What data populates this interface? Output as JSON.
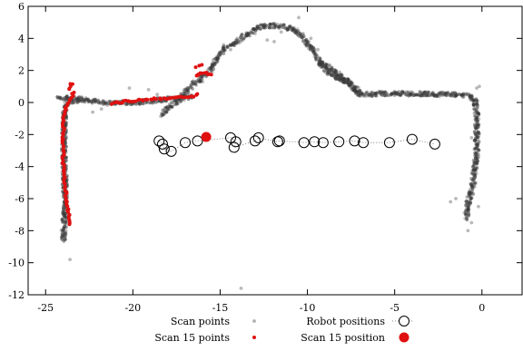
{
  "chart_data": {
    "type": "scatter",
    "title": "",
    "xlabel": "",
    "ylabel": "",
    "xlim": [
      -26,
      2.3
    ],
    "ylim": [
      -12,
      6
    ],
    "x_ticks": [
      -25,
      -20,
      -15,
      -10,
      -5,
      0
    ],
    "y_ticks": [
      -12,
      -10,
      -8,
      -6,
      -4,
      -2,
      0,
      2,
      4,
      6
    ],
    "x_tick_labels": [
      "-25",
      "-20",
      "-15",
      "-10",
      "-5",
      "0"
    ],
    "y_tick_labels": [
      "-12",
      "-10",
      "-8",
      "-6",
      "-4",
      "-2",
      "0",
      "2",
      "4",
      "6"
    ],
    "grid": false,
    "legend": {
      "placement": "bottom-center",
      "entries": [
        {
          "key": "scan_points",
          "label": "Scan points"
        },
        {
          "key": "robot_positions",
          "label": "Robot positions"
        },
        {
          "key": "scan15_points",
          "label": "Scan 15 points"
        },
        {
          "key": "scan15_position",
          "label": "Scan 15 position"
        }
      ]
    },
    "colors": {
      "scan_points": "#3a3a3a",
      "scan15": "#e01010",
      "robot_marker": "#000000"
    },
    "series": [
      {
        "key": "scan_points",
        "name": "Scan points",
        "style": "gray-dots",
        "polylines": [
          [
            [
              -24.0,
              -8.6
            ],
            [
              -23.9,
              -7.0
            ],
            [
              -23.9,
              -5.0
            ],
            [
              -23.95,
              -3.0
            ],
            [
              -23.95,
              -1.5
            ],
            [
              -23.9,
              -0.5
            ],
            [
              -23.8,
              0.0
            ],
            [
              -23.5,
              0.1
            ],
            [
              -23.0,
              0.1
            ]
          ],
          [
            [
              -24.2,
              0.3
            ],
            [
              -23.0,
              0.2
            ],
            [
              -22.0,
              0.05
            ],
            [
              -21.5,
              -0.05
            ],
            [
              -21.0,
              -0.05
            ],
            [
              -20.0,
              0.0
            ],
            [
              -19.0,
              0.1
            ],
            [
              -18.0,
              0.2
            ],
            [
              -17.0,
              0.3
            ],
            [
              -16.6,
              0.35
            ]
          ],
          [
            [
              -18.3,
              -0.8
            ],
            [
              -18.0,
              -0.3
            ],
            [
              -17.5,
              0.0
            ],
            [
              -17.0,
              0.6
            ],
            [
              -16.5,
              1.2
            ],
            [
              -16.0,
              1.6
            ],
            [
              -15.5,
              2.1
            ],
            [
              -15.2,
              2.8
            ],
            [
              -14.8,
              3.3
            ],
            [
              -14.2,
              3.7
            ],
            [
              -13.5,
              4.2
            ],
            [
              -12.8,
              4.7
            ],
            [
              -12.0,
              4.8
            ],
            [
              -11.3,
              4.75
            ],
            [
              -10.7,
              4.5
            ],
            [
              -10.3,
              4.1
            ],
            [
              -9.9,
              3.5
            ],
            [
              -9.5,
              2.9
            ],
            [
              -9.2,
              2.3
            ],
            [
              -8.8,
              1.8
            ],
            [
              -8.2,
              1.5
            ],
            [
              -7.7,
              1.3
            ],
            [
              -7.4,
              0.8
            ],
            [
              -7.0,
              0.5
            ],
            [
              -6.0,
              0.55
            ],
            [
              -4.0,
              0.55
            ],
            [
              -2.0,
              0.5
            ],
            [
              -0.8,
              0.45
            ],
            [
              -0.4,
              0.2
            ],
            [
              -0.3,
              -1.0
            ],
            [
              -0.3,
              -3.0
            ],
            [
              -0.5,
              -5.0
            ],
            [
              -0.8,
              -6.3
            ],
            [
              -0.9,
              -7.2
            ]
          ],
          [
            [
              -9.3,
              2.5
            ],
            [
              -8.8,
              2.2
            ],
            [
              -8.3,
              1.9
            ],
            [
              -7.9,
              1.4
            ],
            [
              -7.4,
              1.0
            ],
            [
              -7.0,
              0.6
            ]
          ]
        ],
        "scatter": [
          [
            -23.6,
            -9.8
          ],
          [
            -22.3,
            -0.6
          ],
          [
            -21.8,
            -0.4
          ],
          [
            -20.2,
            0.9
          ],
          [
            -19.1,
            0.8
          ],
          [
            -18.6,
            0.5
          ],
          [
            -14.8,
            3.6
          ],
          [
            -14.4,
            3.3
          ],
          [
            -13.0,
            4.3
          ],
          [
            -11.5,
            4.4
          ],
          [
            -10.5,
            5.3
          ],
          [
            -9.8,
            4.0
          ],
          [
            -9.4,
            3.3
          ],
          [
            -11.9,
            3.8
          ],
          [
            -12.3,
            3.9
          ],
          [
            -10.9,
            4.6
          ],
          [
            -1.5,
            -6.0
          ],
          [
            -1.8,
            -6.2
          ],
          [
            -0.5,
            -5.7
          ],
          [
            -0.6,
            -7.5
          ],
          [
            -0.8,
            -8.0
          ],
          [
            -0.2,
            -6.5
          ],
          [
            -0.6,
            -2.2
          ],
          [
            -0.3,
            0.9
          ],
          [
            -0.15,
            1.0
          ],
          [
            -13.8,
            -11.6
          ],
          [
            -6.3,
            0.65
          ],
          [
            -5.0,
            0.6
          ],
          [
            -3.5,
            0.4
          ],
          [
            -2.5,
            0.45
          ],
          [
            -16.0,
            1.3
          ],
          [
            -15.7,
            1.8
          ]
        ]
      },
      {
        "key": "scan15_points",
        "name": "Scan 15 points",
        "style": "red-dots",
        "polylines": [
          [
            [
              -23.6,
              -7.6
            ],
            [
              -23.75,
              -6.5
            ],
            [
              -23.9,
              -5.0
            ],
            [
              -24.0,
              -3.5
            ],
            [
              -24.0,
              -2.0
            ],
            [
              -23.95,
              -1.0
            ],
            [
              -23.8,
              -0.2
            ],
            [
              -23.5,
              0.3
            ],
            [
              -23.4,
              0.6
            ]
          ],
          [
            [
              -23.6,
              0.8
            ],
            [
              -23.55,
              1.1
            ],
            [
              -23.5,
              1.2
            ]
          ],
          [
            [
              -21.2,
              -0.05
            ],
            [
              -20.5,
              0.05
            ],
            [
              -19.5,
              0.15
            ],
            [
              -18.5,
              0.25
            ],
            [
              -17.5,
              0.3
            ],
            [
              -16.5,
              0.35
            ],
            [
              -16.3,
              0.5
            ]
          ],
          [
            [
              -16.4,
              1.65
            ],
            [
              -16.2,
              1.8
            ],
            [
              -15.9,
              1.85
            ],
            [
              -15.5,
              1.7
            ]
          ]
        ],
        "scatter": [
          [
            -16.4,
            2.2
          ],
          [
            -16.2,
            2.3
          ],
          [
            -16.05,
            2.35
          ]
        ]
      },
      {
        "key": "robot_positions",
        "name": "Robot positions",
        "style": "open-circles-dotted-line",
        "points": [
          [
            -18.5,
            -2.4
          ],
          [
            -18.3,
            -2.6
          ],
          [
            -18.2,
            -2.9
          ],
          [
            -17.8,
            -3.05
          ],
          [
            -17.0,
            -2.5
          ],
          [
            -16.3,
            -2.4
          ],
          [
            -14.4,
            -2.2
          ],
          [
            -14.1,
            -2.45
          ],
          [
            -14.2,
            -2.8
          ],
          [
            -13.0,
            -2.4
          ],
          [
            -12.8,
            -2.2
          ],
          [
            -11.7,
            -2.45
          ],
          [
            -11.6,
            -2.4
          ],
          [
            -10.2,
            -2.5
          ],
          [
            -9.6,
            -2.45
          ],
          [
            -9.1,
            -2.5
          ],
          [
            -8.2,
            -2.45
          ],
          [
            -7.3,
            -2.4
          ],
          [
            -6.8,
            -2.5
          ],
          [
            -5.3,
            -2.5
          ],
          [
            -4.0,
            -2.3
          ],
          [
            -2.7,
            -2.6
          ]
        ]
      },
      {
        "key": "scan15_position",
        "name": "Scan 15 position",
        "style": "filled-red-circle",
        "points": [
          [
            -15.8,
            -2.15
          ]
        ]
      }
    ]
  }
}
